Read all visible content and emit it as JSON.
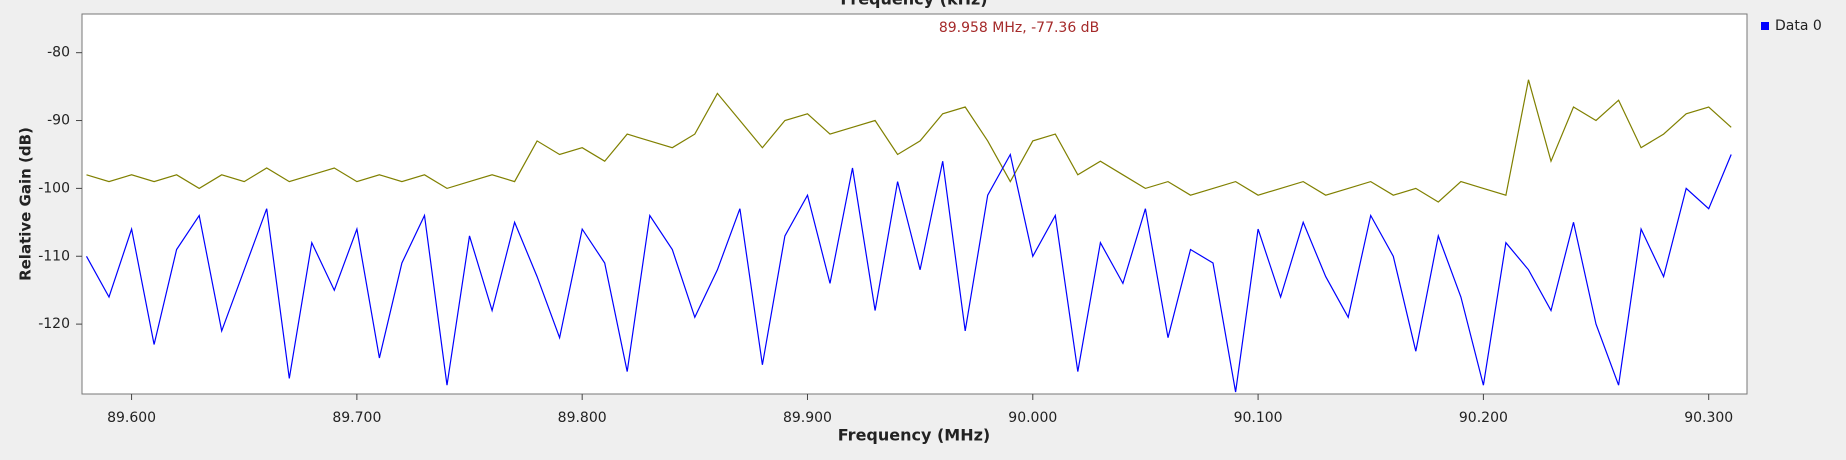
{
  "chart_data": {
    "type": "line",
    "title": "Frequency (kHz)",
    "annotation": "89.958 MHz, -77.36 dB",
    "xlabel": "Frequency (MHz)",
    "ylabel": "Relative Gain (dB)",
    "x": [
      89.58,
      89.59,
      89.6,
      89.61,
      89.62,
      89.63,
      89.64,
      89.65,
      89.66,
      89.67,
      89.68,
      89.69,
      89.7,
      89.71,
      89.72,
      89.73,
      89.74,
      89.75,
      89.76,
      89.77,
      89.78,
      89.79,
      89.8,
      89.81,
      89.82,
      89.83,
      89.84,
      89.85,
      89.86,
      89.87,
      89.88,
      89.89,
      89.9,
      89.91,
      89.92,
      89.93,
      89.94,
      89.95,
      89.96,
      89.97,
      89.98,
      89.99,
      90.0,
      90.01,
      90.02,
      90.03,
      90.04,
      90.05,
      90.06,
      90.07,
      90.08,
      90.09,
      90.1,
      90.11,
      90.12,
      90.13,
      90.14,
      90.15,
      90.16,
      90.17,
      90.18,
      90.19,
      90.2,
      90.21,
      90.22,
      90.23,
      90.24,
      90.25,
      90.26,
      90.27,
      90.28,
      90.29,
      90.3,
      90.31
    ],
    "series": [
      {
        "name": "Data 0",
        "color": "#0000ff",
        "values": [
          -110,
          -116,
          -106,
          -123,
          -109,
          -104,
          -121,
          -112,
          -103,
          -128,
          -108,
          -115,
          -106,
          -125,
          -111,
          -104,
          -129,
          -107,
          -118,
          -105,
          -113,
          -122,
          -106,
          -111,
          -127,
          -104,
          -109,
          -119,
          -112,
          -103,
          -126,
          -107,
          -101,
          -114,
          -97,
          -118,
          -99,
          -112,
          -96,
          -121,
          -101,
          -95,
          -110,
          -104,
          -127,
          -108,
          -114,
          -103,
          -122,
          -109,
          -111,
          -130,
          -106,
          -116,
          -105,
          -113,
          -119,
          -104,
          -110,
          -124,
          -107,
          -116,
          -129,
          -108,
          -112,
          -118,
          -105,
          -120,
          -129,
          -106,
          -113,
          -100,
          -103,
          -95
        ]
      },
      {
        "color": "#808000",
        "values": [
          -98,
          -99,
          -98,
          -99,
          -98,
          -100,
          -98,
          -99,
          -97,
          -99,
          -98,
          -97,
          -99,
          -98,
          -99,
          -98,
          -100,
          -99,
          -98,
          -99,
          -93,
          -95,
          -94,
          -96,
          -92,
          -93,
          -94,
          -92,
          -86,
          -90,
          -94,
          -90,
          -89,
          -92,
          -91,
          -90,
          -95,
          -93,
          -89,
          -88,
          -93,
          -99,
          -93,
          -92,
          -98,
          -96,
          -98,
          -100,
          -99,
          -101,
          -100,
          -99,
          -101,
          -100,
          -99,
          -101,
          -100,
          -99,
          -101,
          -100,
          -102,
          -99,
          -100,
          -101,
          -84,
          -96,
          -88,
          -90,
          -87,
          -94,
          -92,
          -89,
          -88,
          -91
        ]
      }
    ],
    "xlim": [
      89.578,
      90.317
    ],
    "ylim": [
      -130.3,
      -74.3
    ],
    "xticks": [
      {
        "value": 89.6,
        "label": "89.600"
      },
      {
        "value": 89.7,
        "label": "89.700"
      },
      {
        "value": 89.8,
        "label": "89.800"
      },
      {
        "value": 89.9,
        "label": "89.900"
      },
      {
        "value": 90.0,
        "label": "90.000"
      },
      {
        "value": 90.1,
        "label": "90.100"
      },
      {
        "value": 90.2,
        "label": "90.200"
      },
      {
        "value": 90.3,
        "label": "90.300"
      }
    ],
    "yticks": [
      -80,
      -90,
      -100,
      -110,
      -120
    ],
    "grid": false,
    "legend": "top-right"
  }
}
